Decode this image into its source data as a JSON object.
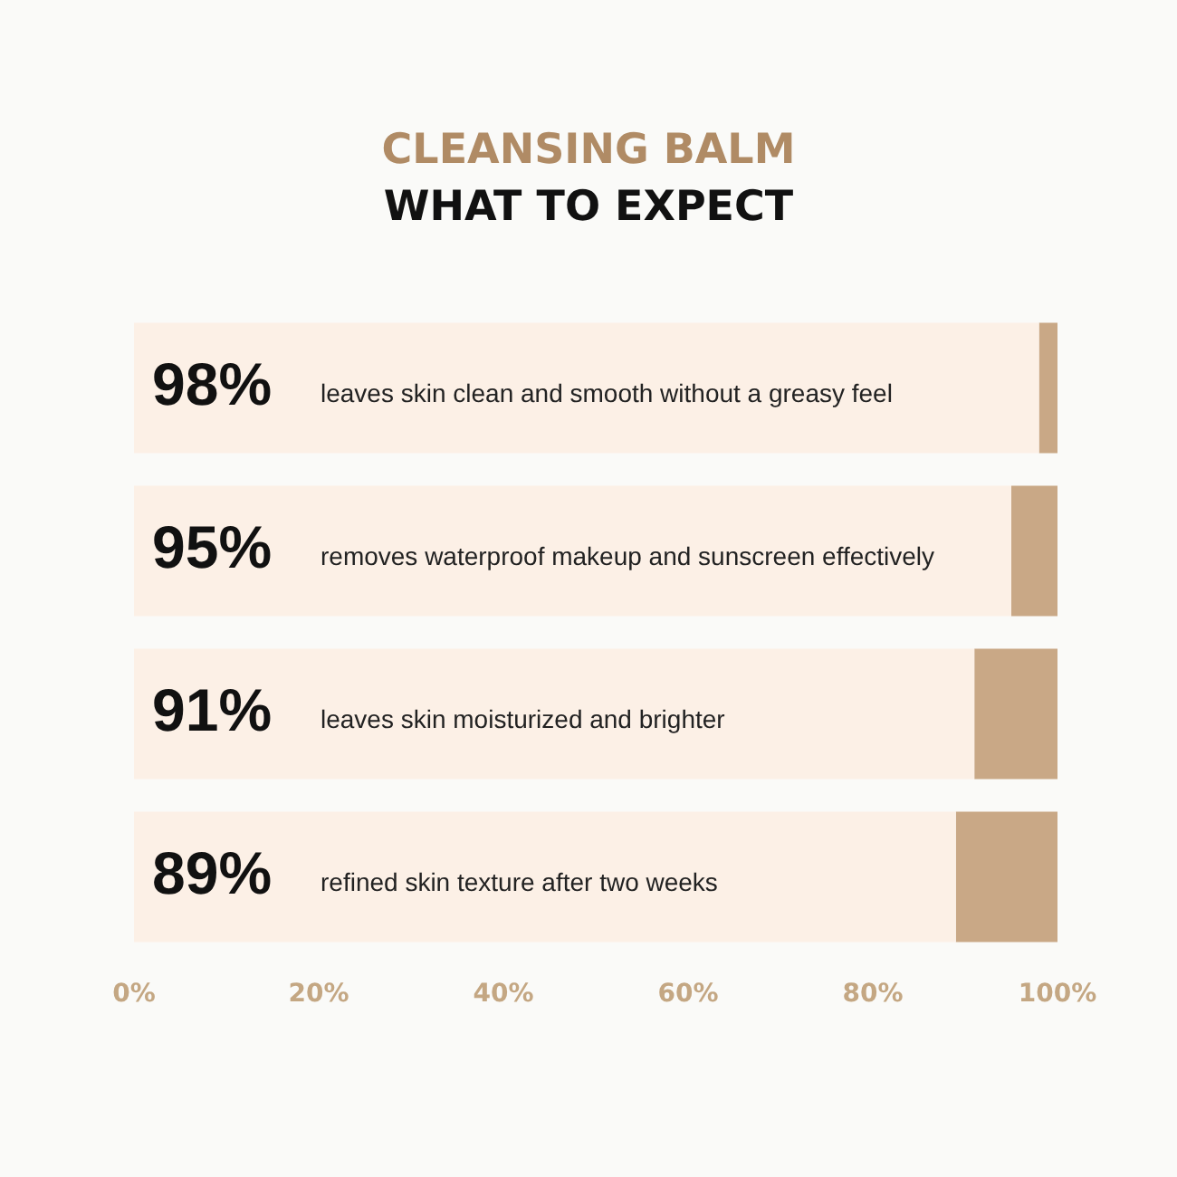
{
  "chart_data": {
    "type": "bar",
    "orientation": "horizontal",
    "stacked": true,
    "title": "CLEANSING BALM",
    "subtitle": "WHAT TO EXPECT",
    "categories": [
      "leaves skin clean and smooth without a greasy feel",
      "removes waterproof makeup and sunscreen effectively",
      "leaves skin moisturized and brighter",
      "refined skin texture after two weeks"
    ],
    "series": [
      {
        "color": "#fcf0e6",
        "values": [
          98,
          95,
          91,
          89
        ],
        "value_labels": [
          "98%",
          "95%",
          "91%",
          "89%"
        ]
      },
      {
        "color": "#c9a886",
        "values": [
          2,
          5,
          9,
          11
        ]
      }
    ],
    "xlim": [
      0,
      100
    ],
    "xticks": [
      {
        "value": 0,
        "label": "0%"
      },
      {
        "value": 20,
        "label": "20%"
      },
      {
        "value": 40,
        "label": "40%"
      },
      {
        "value": 60,
        "label": "60%"
      },
      {
        "value": 80,
        "label": "80%"
      },
      {
        "value": 100,
        "label": "100%"
      }
    ],
    "tick_labels": "x",
    "grid": false,
    "legend": false
  }
}
